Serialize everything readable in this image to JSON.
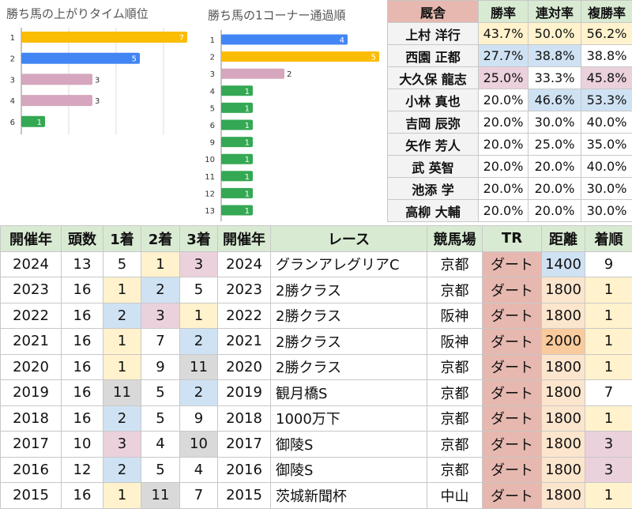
{
  "chart_data": [
    {
      "type": "hbar",
      "title": "勝ち馬の上がりタイム順位",
      "categories": [
        "1",
        "2",
        "3",
        "4",
        "6"
      ],
      "values": [
        7,
        5,
        3,
        3,
        1
      ],
      "colors": [
        "#fbbc04",
        "#4285f4",
        "#d5a6bd",
        "#d5a6bd",
        "#34a853"
      ],
      "label_colors": [
        "#ffffff",
        "#ffffff",
        "#333333",
        "#333333",
        "#ffffff"
      ],
      "xlim": [
        0,
        7
      ],
      "xticks": [
        0,
        2,
        4,
        6
      ],
      "grid": true,
      "tick_labels": false
    },
    {
      "type": "hbar",
      "title": "勝ち馬の1コーナー通過順",
      "categories": [
        "1",
        "2",
        "3",
        "4",
        "5",
        "6",
        "9",
        "10",
        "11",
        "12",
        "13"
      ],
      "values": [
        4,
        5,
        2,
        1,
        1,
        1,
        1,
        1,
        1,
        1,
        1
      ],
      "colors": [
        "#4285f4",
        "#fbbc04",
        "#d5a6bd",
        "#34a853",
        "#34a853",
        "#34a853",
        "#34a853",
        "#34a853",
        "#34a853",
        "#34a853",
        "#34a853"
      ],
      "label_colors": [
        "#ffffff",
        "#ffffff",
        "#333333",
        "#ffffff",
        "#ffffff",
        "#ffffff",
        "#ffffff",
        "#ffffff",
        "#ffffff",
        "#ffffff",
        "#ffffff"
      ],
      "xlim": [
        0,
        5
      ],
      "xticks": [
        0
      ],
      "grid": false,
      "tick_labels": false
    }
  ],
  "jockey_table": {
    "header": [
      "厩舎",
      "勝率",
      "連対率",
      "複勝率"
    ],
    "header_colors": [
      "#e6b8af",
      "#d9ead3",
      "#d9ead3",
      "#d9ead3"
    ],
    "rows": [
      [
        "上村 洋行",
        "43.7%",
        "50.0%",
        "56.2%"
      ],
      [
        "西園 正都",
        "27.7%",
        "38.8%",
        "38.8%"
      ],
      [
        "大久保 龍志",
        "25.0%",
        "33.3%",
        "45.8%"
      ],
      [
        "小林 真也",
        "20.0%",
        "46.6%",
        "53.3%"
      ],
      [
        "吉岡 辰弥",
        "20.0%",
        "30.0%",
        "40.0%"
      ],
      [
        "矢作 芳人",
        "20.0%",
        "25.0%",
        "35.0%"
      ],
      [
        "武 英智",
        "20.0%",
        "20.0%",
        "40.0%"
      ],
      [
        "池添 学",
        "20.0%",
        "20.0%",
        "30.0%"
      ],
      [
        "高柳 大輔",
        "20.0%",
        "20.0%",
        "30.0%"
      ]
    ],
    "cell_colors": [
      [
        "#f3f3f3",
        "#fff2cc",
        "#fff2cc",
        "#fff2cc"
      ],
      [
        "#f3f3f3",
        "#cfe2f3",
        "#cfe2f3",
        "#ffffff"
      ],
      [
        "#f3f3f3",
        "#ead1dc",
        "#ffffff",
        "#ead1dc"
      ],
      [
        "#f3f3f3",
        "#ffffff",
        "#cfe2f3",
        "#cfe2f3"
      ],
      [
        "#f3f3f3",
        "#ffffff",
        "#ffffff",
        "#ffffff"
      ],
      [
        "#f3f3f3",
        "#ffffff",
        "#ffffff",
        "#ffffff"
      ],
      [
        "#f3f3f3",
        "#ffffff",
        "#ffffff",
        "#ffffff"
      ],
      [
        "#f3f3f3",
        "#ffffff",
        "#ffffff",
        "#ffffff"
      ],
      [
        "#f3f3f3",
        "#ffffff",
        "#ffffff",
        "#ffffff"
      ]
    ]
  },
  "race_table": {
    "header": [
      "開催年",
      "頭数",
      "1着",
      "2着",
      "3着",
      "開催年",
      "レース",
      "競馬場",
      "TR",
      "距離",
      "着順"
    ],
    "rows": [
      [
        "2024",
        "13",
        "5",
        "1",
        "3",
        "2024",
        "グランアレグリアC",
        "京都",
        "ダート",
        "1400",
        "9"
      ],
      [
        "2023",
        "16",
        "1",
        "2",
        "5",
        "2023",
        "2勝クラス",
        "京都",
        "ダート",
        "1800",
        "1"
      ],
      [
        "2022",
        "16",
        "2",
        "3",
        "1",
        "2022",
        "2勝クラス",
        "阪神",
        "ダート",
        "1800",
        "1"
      ],
      [
        "2021",
        "16",
        "1",
        "7",
        "2",
        "2021",
        "2勝クラス",
        "阪神",
        "ダート",
        "2000",
        "1"
      ],
      [
        "2020",
        "16",
        "1",
        "9",
        "11",
        "2020",
        "2勝クラス",
        "京都",
        "ダート",
        "1800",
        "1"
      ],
      [
        "2019",
        "16",
        "11",
        "5",
        "2",
        "2019",
        "観月橋S",
        "京都",
        "ダート",
        "1800",
        "7"
      ],
      [
        "2018",
        "16",
        "2",
        "5",
        "9",
        "2018",
        "1000万下",
        "京都",
        "ダート",
        "1800",
        "1"
      ],
      [
        "2017",
        "10",
        "3",
        "4",
        "10",
        "2017",
        "御陵S",
        "京都",
        "ダート",
        "1800",
        "3"
      ],
      [
        "2016",
        "12",
        "2",
        "5",
        "4",
        "2016",
        "御陵S",
        "京都",
        "ダート",
        "1800",
        "3"
      ],
      [
        "2015",
        "16",
        "1",
        "11",
        "7",
        "2015",
        "茨城新聞杯",
        "中山",
        "ダート",
        "1800",
        "1"
      ]
    ],
    "cell_colors": [
      [
        "#ffffff",
        "#ffffff",
        "#ffffff",
        "#fff2cc",
        "#ead1dc",
        "#ffffff",
        "#ffffff",
        "#ffffff",
        "#e6b8af",
        "#cfe2f3",
        "#ffffff"
      ],
      [
        "#ffffff",
        "#ffffff",
        "#fff2cc",
        "#cfe2f3",
        "#ffffff",
        "#ffffff",
        "#ffffff",
        "#ffffff",
        "#e6b8af",
        "#fce5cd",
        "#fff2cc"
      ],
      [
        "#ffffff",
        "#ffffff",
        "#cfe2f3",
        "#ead1dc",
        "#fff2cc",
        "#ffffff",
        "#ffffff",
        "#ffffff",
        "#e6b8af",
        "#fce5cd",
        "#fff2cc"
      ],
      [
        "#ffffff",
        "#ffffff",
        "#fff2cc",
        "#ffffff",
        "#cfe2f3",
        "#ffffff",
        "#ffffff",
        "#ffffff",
        "#e6b8af",
        "#f9cb9c",
        "#fff2cc"
      ],
      [
        "#ffffff",
        "#ffffff",
        "#fff2cc",
        "#ffffff",
        "#d9d9d9",
        "#ffffff",
        "#ffffff",
        "#ffffff",
        "#e6b8af",
        "#fce5cd",
        "#fff2cc"
      ],
      [
        "#ffffff",
        "#ffffff",
        "#d9d9d9",
        "#ffffff",
        "#cfe2f3",
        "#ffffff",
        "#ffffff",
        "#ffffff",
        "#e6b8af",
        "#fce5cd",
        "#ffffff"
      ],
      [
        "#ffffff",
        "#ffffff",
        "#cfe2f3",
        "#ffffff",
        "#ffffff",
        "#ffffff",
        "#ffffff",
        "#ffffff",
        "#e6b8af",
        "#fce5cd",
        "#fff2cc"
      ],
      [
        "#ffffff",
        "#ffffff",
        "#ead1dc",
        "#ffffff",
        "#d9d9d9",
        "#ffffff",
        "#ffffff",
        "#ffffff",
        "#e6b8af",
        "#fce5cd",
        "#ead1dc"
      ],
      [
        "#ffffff",
        "#ffffff",
        "#cfe2f3",
        "#ffffff",
        "#ffffff",
        "#ffffff",
        "#ffffff",
        "#ffffff",
        "#e6b8af",
        "#fce5cd",
        "#ead1dc"
      ],
      [
        "#ffffff",
        "#ffffff",
        "#fff2cc",
        "#d9d9d9",
        "#ffffff",
        "#ffffff",
        "#ffffff",
        "#ffffff",
        "#e6b8af",
        "#fce5cd",
        "#fff2cc"
      ]
    ],
    "header_color": "#d9ead3"
  }
}
